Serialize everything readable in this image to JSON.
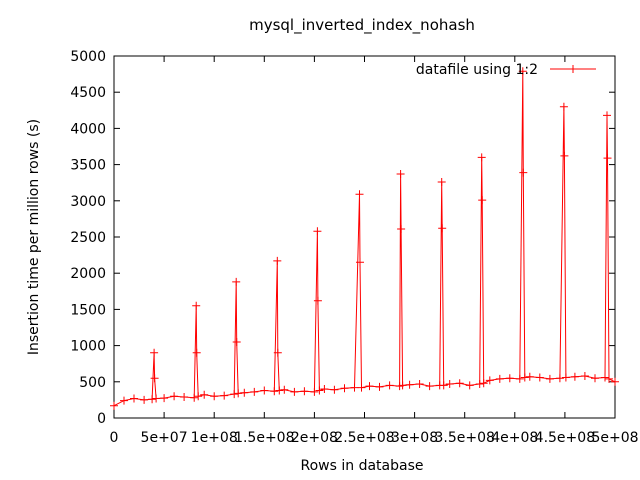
{
  "chart_data": {
    "type": "line",
    "title": "mysql_inverted_index_nohash",
    "xlabel": "Rows in database",
    "ylabel": "Insertion time per million rows (s)",
    "xlim": [
      0,
      500000000
    ],
    "ylim": [
      0,
      5000
    ],
    "x_ticks": [
      "0",
      "5e+07",
      "1e+08",
      "1.5e+08",
      "2e+08",
      "2.5e+08",
      "3e+08",
      "3.5e+08",
      "4e+08",
      "4.5e+08",
      "5e+08"
    ],
    "y_ticks": [
      "0",
      "500",
      "1000",
      "1500",
      "2000",
      "2500",
      "3000",
      "3500",
      "4000",
      "4500",
      "5000"
    ],
    "grid": false,
    "legend_position": "top-right",
    "series": [
      {
        "name": "datafile using 1:2",
        "color": "#ff0000",
        "marker": "plus",
        "x": [
          0,
          10000000,
          20000000,
          30000000,
          38000000,
          40000000,
          40500000,
          42000000,
          50000000,
          60000000,
          70000000,
          80000000,
          82000000,
          82500000,
          84000000,
          90000000,
          100000000,
          110000000,
          120000000,
          122000000,
          122500000,
          124000000,
          130000000,
          140000000,
          150000000,
          160000000,
          163000000,
          163500000,
          165000000,
          170000000,
          180000000,
          190000000,
          200000000,
          203000000,
          203500000,
          205000000,
          210000000,
          220000000,
          230000000,
          240000000,
          245000000,
          245500000,
          247000000,
          255000000,
          265000000,
          275000000,
          285000000,
          286000000,
          286500000,
          288000000,
          295000000,
          305000000,
          315000000,
          325000000,
          327000000,
          327500000,
          329000000,
          335000000,
          345000000,
          355000000,
          365000000,
          367000000,
          367500000,
          369000000,
          375000000,
          385000000,
          395000000,
          405000000,
          408000000,
          408500000,
          410000000,
          415000000,
          425000000,
          435000000,
          445000000,
          449000000,
          449500000,
          451000000,
          460000000,
          470000000,
          480000000,
          490000000,
          492000000,
          492500000,
          494000000,
          500000000
        ],
        "values": [
          170,
          240,
          270,
          250,
          260,
          900,
          550,
          270,
          275,
          300,
          290,
          280,
          1550,
          900,
          300,
          320,
          300,
          310,
          330,
          1880,
          1050,
          340,
          350,
          360,
          380,
          370,
          2170,
          900,
          380,
          390,
          360,
          370,
          360,
          2580,
          1620,
          380,
          400,
          390,
          410,
          420,
          3090,
          2150,
          420,
          440,
          430,
          450,
          440,
          3370,
          2610,
          450,
          460,
          470,
          440,
          450,
          3260,
          2620,
          450,
          470,
          480,
          450,
          470,
          3600,
          3010,
          480,
          520,
          540,
          550,
          540,
          4790,
          3390,
          560,
          570,
          560,
          540,
          550,
          4300,
          3620,
          560,
          570,
          580,
          550,
          560,
          4180,
          3590,
          540,
          500
        ]
      }
    ]
  }
}
